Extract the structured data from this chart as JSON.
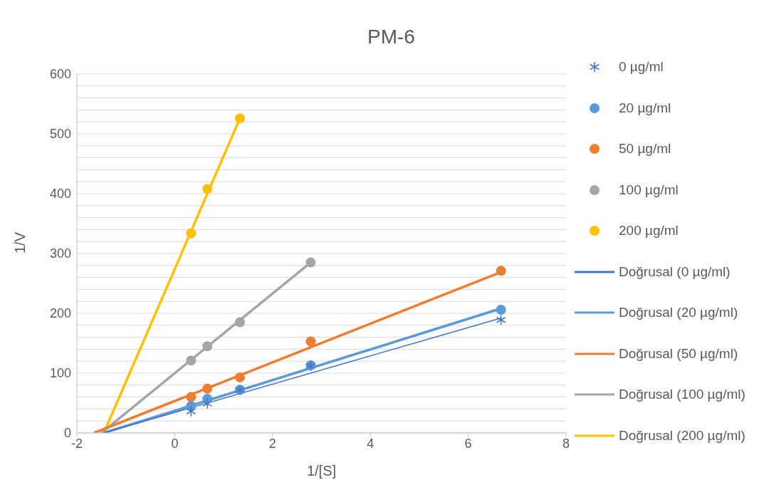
{
  "chart_data": {
    "type": "scatter",
    "title": "PM-6",
    "xlabel": "1/[S]",
    "ylabel": "1/V",
    "xlim": [
      -2,
      8
    ],
    "xticks": [
      -2,
      0,
      2,
      4,
      6,
      8
    ],
    "ylim": [
      0,
      600
    ],
    "yticks": [
      0,
      {
        "value": 20,
        "label": null
      },
      {
        "value": 40,
        "label": null
      },
      {
        "value": 60,
        "label": null
      },
      {
        "value": 80,
        "label": null
      },
      100,
      {
        "value": 120,
        "label": null
      },
      {
        "value": 140,
        "label": null
      },
      {
        "value": 160,
        "label": null
      },
      {
        "value": 180,
        "label": null
      },
      200,
      {
        "value": 220,
        "label": null
      },
      {
        "value": 240,
        "label": null
      },
      {
        "value": 260,
        "label": null
      },
      {
        "value": 280,
        "label": null
      },
      300,
      {
        "value": 320,
        "label": null
      },
      {
        "value": 340,
        "label": null
      },
      {
        "value": 360,
        "label": null
      },
      {
        "value": 380,
        "label": null
      },
      400,
      {
        "value": 420,
        "label": null
      },
      {
        "value": 440,
        "label": null
      },
      {
        "value": 460,
        "label": null
      },
      {
        "value": 480,
        "label": null
      },
      500,
      {
        "value": 520,
        "label": null
      },
      {
        "value": 540,
        "label": null
      },
      {
        "value": 560,
        "label": null
      },
      {
        "value": 580,
        "label": null
      },
      600
    ],
    "grid": "y",
    "legend": "right",
    "series": [
      {
        "name": "0 µg/ml",
        "type": "scatter",
        "marker": "cross",
        "color": "#4472c4",
        "x": [
          0.333,
          0.667,
          1.333,
          2.78,
          6.67
        ],
        "values": [
          36,
          49,
          72,
          112,
          189
        ]
      },
      {
        "name": "20 µg/ml",
        "type": "scatter",
        "marker": "circle",
        "color": "#5b9bd5",
        "x": [
          0.333,
          0.667,
          1.333,
          2.78,
          6.67
        ],
        "values": [
          45,
          57,
          72,
          113,
          206
        ]
      },
      {
        "name": "50 µg/ml",
        "type": "scatter",
        "marker": "circle",
        "color": "#ed7d31",
        "x": [
          0.333,
          0.667,
          1.333,
          2.78,
          6.67
        ],
        "values": [
          60,
          74,
          93,
          153,
          271
        ]
      },
      {
        "name": "100 µg/ml",
        "type": "scatter",
        "marker": "circle",
        "color": "#a5a5a5",
        "x": [
          0.333,
          0.667,
          1.333,
          2.78
        ],
        "values": [
          121,
          145,
          185,
          285
        ]
      },
      {
        "name": "200 µg/ml",
        "type": "scatter",
        "marker": "circle",
        "color": "#ffc000",
        "x": [
          0.333,
          0.667,
          1.333
        ],
        "values": [
          334,
          408,
          526
        ]
      },
      {
        "name": "Doğrusal (0 µg/ml)",
        "type": "line",
        "marker": "none",
        "color": "#4472c4",
        "x": [
          -1.45,
          6.67
        ],
        "values": [
          0,
          192
        ]
      },
      {
        "name": "Doğrusal (20 µg/ml)",
        "type": "line",
        "marker": "none",
        "color": "#5b9bd5",
        "x": [
          -1.45,
          6.67
        ],
        "values": [
          0,
          208
        ]
      },
      {
        "name": "Doğrusal (50 µg/ml)",
        "type": "line",
        "marker": "none",
        "color": "#ed7d31",
        "x": [
          -1.65,
          6.67
        ],
        "values": [
          0,
          269
        ]
      },
      {
        "name": "Doğrusal (100 µg/ml)",
        "type": "line",
        "marker": "none",
        "color": "#a5a5a5",
        "x": [
          -1.5,
          2.78
        ],
        "values": [
          0,
          285
        ]
      },
      {
        "name": "Doğrusal (200 µg/ml)",
        "type": "line",
        "marker": "none",
        "color": "#ffc000",
        "x": [
          -1.45,
          1.333
        ],
        "values": [
          0,
          526
        ]
      }
    ]
  }
}
